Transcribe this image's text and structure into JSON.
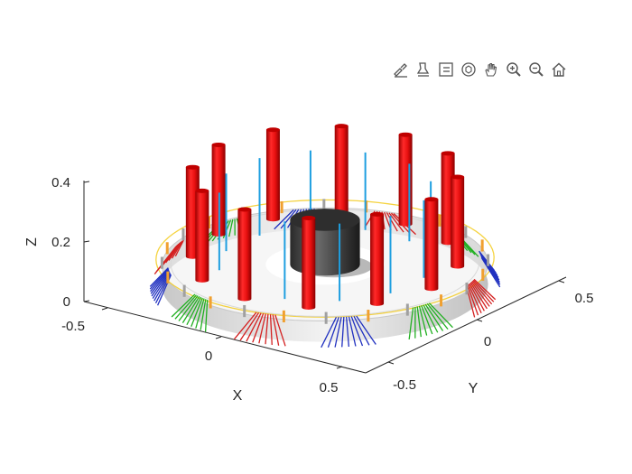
{
  "toolbar": {
    "items": [
      {
        "name": "brush-data-icon",
        "label": "Brush"
      },
      {
        "name": "data-tips-icon",
        "label": "Data Tips"
      },
      {
        "name": "legend-icon",
        "label": "Legend"
      },
      {
        "name": "rotate-3d-icon",
        "label": "Rotate"
      },
      {
        "name": "pan-hand-icon",
        "label": "Pan"
      },
      {
        "name": "zoom-in-icon",
        "label": "Zoom In"
      },
      {
        "name": "zoom-out-icon",
        "label": "Zoom Out"
      },
      {
        "name": "home-icon",
        "label": "Restore View"
      }
    ]
  },
  "chart_data": {
    "type": "3d-scene",
    "xlabel": "X",
    "ylabel": "Y",
    "zlabel": "Z",
    "xticks": [
      "-0.5",
      "0",
      "0.5"
    ],
    "yticks": [
      "-0.5",
      "0",
      "0.5"
    ],
    "zticks": [
      "0",
      "0.2",
      "0.4"
    ],
    "xlim": [
      -0.62,
      0.62
    ],
    "ylim": [
      -0.62,
      0.62
    ],
    "zlim": [
      0,
      0.42
    ],
    "grid": false,
    "colors": {
      "cylinder": "#e8141c",
      "hub": "#404040",
      "rod": "#1f9fe0",
      "ring": "#f2c811",
      "pad": "#f0a030",
      "fan_red": "#d42020",
      "fan_blue": "#2030c0",
      "fan_green": "#20b020"
    },
    "base_disk": {
      "radius": 0.55,
      "z_top": 0.07
    },
    "hub": {
      "radius": 0.12,
      "height": 0.15
    },
    "cylinders": {
      "count": 12,
      "radius": 0.45,
      "z_base": 0.08,
      "height": 0.3
    },
    "rods": {
      "count": 12,
      "radius": 0.36,
      "z_base": 0.07,
      "height": 0.26
    },
    "fans": {
      "count": 12,
      "radius": 0.53,
      "colors": [
        "red",
        "blue",
        "green"
      ]
    }
  }
}
